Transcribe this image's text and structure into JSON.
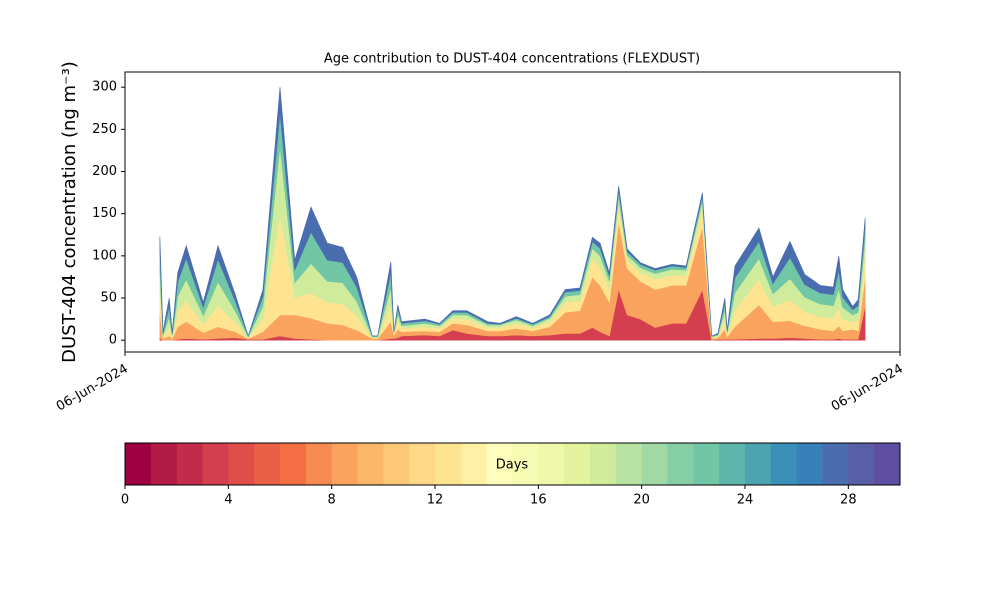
{
  "chart_data": {
    "type": "stacked_area",
    "title": "Age contribution to DUST-404 concentrations (FLEXDUST)",
    "ylabel": "DUST-404 concentration (ng m⁻³)",
    "x": [
      0.045,
      0.049,
      0.057,
      0.061,
      0.068,
      0.079,
      0.101,
      0.12,
      0.142,
      0.159,
      0.178,
      0.2,
      0.219,
      0.24,
      0.261,
      0.281,
      0.299,
      0.319,
      0.326,
      0.343,
      0.347,
      0.352,
      0.357,
      0.387,
      0.406,
      0.423,
      0.441,
      0.468,
      0.484,
      0.505,
      0.526,
      0.548,
      0.568,
      0.587,
      0.603,
      0.613,
      0.625,
      0.637,
      0.648,
      0.665,
      0.684,
      0.706,
      0.724,
      0.745,
      0.757,
      0.765,
      0.774,
      0.777,
      0.787,
      0.818,
      0.836,
      0.858,
      0.877,
      0.897,
      0.914,
      0.921,
      0.926,
      0.939,
      0.946,
      0.955
    ],
    "xlim": [
      0,
      1
    ],
    "xticks": [
      {
        "value": 0,
        "label": "06-Jun-2024"
      },
      {
        "value": 1,
        "label": "06-Jun-2024"
      }
    ],
    "ylim": [
      -14,
      318
    ],
    "yticks": [
      0,
      50,
      100,
      150,
      200,
      250,
      300
    ],
    "series": [
      {
        "color": "#d53e4f",
        "values": [
          2,
          0,
          0,
          0,
          1,
          2,
          1,
          2,
          3,
          1,
          1,
          5,
          2,
          1,
          0,
          0,
          0,
          0,
          0,
          2,
          2,
          3,
          5,
          6,
          5,
          12,
          8,
          5,
          5,
          6,
          5,
          6,
          8,
          8,
          15,
          10,
          5,
          60,
          30,
          25,
          15,
          20,
          20,
          60,
          0,
          1,
          1,
          1,
          1,
          2,
          2,
          3,
          2,
          1,
          1,
          2,
          1,
          1,
          1,
          40
        ]
      },
      {
        "color": "#f9a35e",
        "values": [
          30,
          2,
          5,
          2,
          15,
          20,
          8,
          14,
          7,
          1,
          9,
          25,
          28,
          25,
          20,
          18,
          12,
          2,
          2,
          20,
          4,
          10,
          5,
          5,
          5,
          8,
          10,
          6,
          6,
          8,
          6,
          10,
          25,
          27,
          60,
          55,
          40,
          80,
          55,
          45,
          45,
          45,
          45,
          75,
          2,
          2,
          12,
          3,
          15,
          40,
          20,
          20,
          15,
          12,
          10,
          15,
          10,
          12,
          10,
          35
        ]
      },
      {
        "color": "#fee491",
        "values": [
          25,
          2,
          10,
          2,
          18,
          25,
          10,
          25,
          12,
          1,
          15,
          120,
          20,
          30,
          25,
          25,
          17,
          1,
          1,
          20,
          2,
          10,
          4,
          5,
          4,
          6,
          7,
          4,
          4,
          6,
          4,
          6,
          12,
          12,
          22,
          22,
          15,
          20,
          10,
          10,
          12,
          12,
          12,
          20,
          1,
          2,
          12,
          3,
          20,
          30,
          18,
          25,
          17,
          15,
          15,
          22,
          14,
          9,
          12,
          25
        ]
      },
      {
        "color": "#cfeb9c",
        "values": [
          25,
          2,
          12,
          2,
          18,
          25,
          10,
          28,
          13,
          1,
          15,
          80,
          18,
          35,
          25,
          25,
          17,
          1,
          1,
          20,
          1,
          8,
          3,
          4,
          3,
          4,
          5,
          3,
          3,
          4,
          2,
          4,
          7,
          7,
          12,
          13,
          10,
          10,
          6,
          6,
          7,
          7,
          6,
          10,
          1,
          1,
          10,
          2,
          20,
          25,
          15,
          25,
          17,
          15,
          15,
          22,
          14,
          8,
          10,
          20
        ]
      },
      {
        "color": "#70c6a5",
        "values": [
          25,
          2,
          13,
          2,
          17,
          25,
          10,
          27,
          12,
          1,
          12,
          40,
          15,
          37,
          25,
          24,
          17,
          1,
          1,
          18,
          1,
          7,
          3,
          3,
          2,
          3,
          3,
          2,
          1,
          2,
          2,
          2,
          5,
          5,
          8,
          9,
          6,
          8,
          4,
          4,
          4,
          4,
          3,
          6,
          1,
          1,
          9,
          2,
          18,
          20,
          12,
          25,
          15,
          13,
          13,
          22,
          12,
          6,
          8,
          15
        ]
      },
      {
        "color": "#4a6db0",
        "values": [
          16,
          2,
          10,
          2,
          11,
          15,
          6,
          16,
          8,
          0,
          8,
          30,
          12,
          30,
          20,
          18,
          12,
          0,
          0,
          13,
          0,
          4,
          2,
          2,
          1,
          2,
          2,
          2,
          1,
          2,
          1,
          2,
          3,
          3,
          5,
          6,
          4,
          5,
          3,
          2,
          2,
          2,
          2,
          4,
          0,
          1,
          6,
          1,
          14,
          16,
          8,
          19,
          12,
          9,
          9,
          17,
          9,
          4,
          7,
          10
        ]
      }
    ],
    "colorbar": {
      "label": "Days",
      "lim": [
        0,
        30
      ],
      "ticks": [
        0,
        4,
        8,
        12,
        16,
        20,
        24,
        28
      ],
      "colors": [
        "#9e0142",
        "#b11a45",
        "#c42b4a",
        "#d53e4f",
        "#e14e4a",
        "#ea5f47",
        "#f46d43",
        "#f68b51",
        "#f9a35e",
        "#fdb768",
        "#fdc877",
        "#fed886",
        "#fee491",
        "#fff0a5",
        "#fefdbc",
        "#f6fbb3",
        "#eef8a8",
        "#e2f39b",
        "#cfeb9c",
        "#b9e3a2",
        "#a0d9a4",
        "#86cfa5",
        "#70c6a5",
        "#5db5ab",
        "#4ca4b1",
        "#3b90b8",
        "#3880b9",
        "#4a6db0",
        "#5a5da8",
        "#5e4fa2"
      ]
    }
  }
}
